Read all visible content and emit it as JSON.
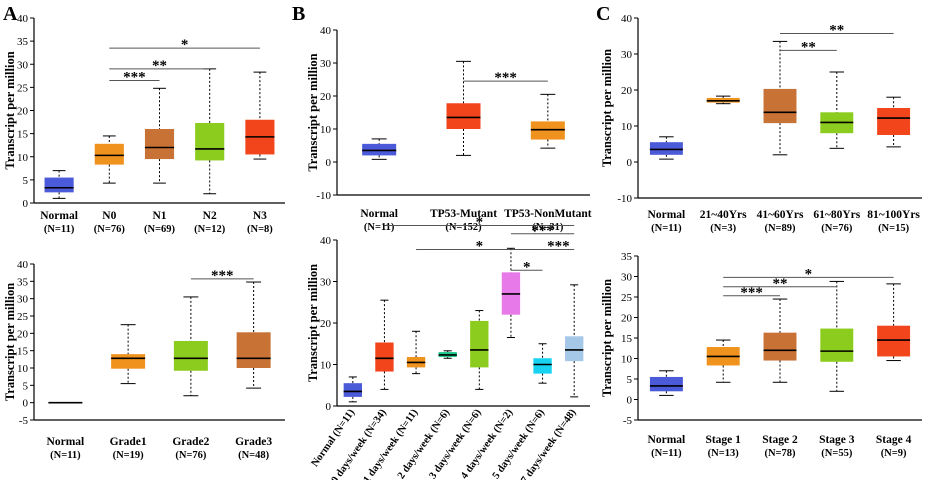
{
  "panel_letters": [
    "A",
    "B",
    "C"
  ],
  "chart_data": [
    {
      "id": "A1",
      "panel": "A",
      "type": "box",
      "ylabel": "Transcript per million",
      "ylim": [
        0,
        40
      ],
      "yticks": [
        0,
        5,
        10,
        15,
        20,
        25,
        30,
        35,
        40
      ],
      "categories": [
        "Normal",
        "N0",
        "N1",
        "N2",
        "N3"
      ],
      "sublabels": [
        "(N=11)",
        "(N=76)",
        "(N=69)",
        "(N=12)",
        "(N=8)"
      ],
      "boxes": [
        {
          "min": 1,
          "q1": 2.3,
          "median": 3.3,
          "q3": 5.5,
          "max": 7,
          "color": "#4a5ad8"
        },
        {
          "min": 4.3,
          "q1": 8.3,
          "median": 10.3,
          "q3": 12.8,
          "max": 14.5,
          "color": "#f0921e"
        },
        {
          "min": 4.3,
          "q1": 9.5,
          "median": 12,
          "q3": 16,
          "max": 24.8,
          "color": "#c87335"
        },
        {
          "min": 2,
          "q1": 9.2,
          "median": 11.7,
          "q3": 17.3,
          "max": 29,
          "color": "#8ccc1e"
        },
        {
          "min": 9.5,
          "q1": 10.5,
          "median": 14.3,
          "q3": 18,
          "max": 28.3,
          "color": "#f2451c"
        }
      ],
      "brackets": [
        {
          "from": 1,
          "to": 4,
          "y": 33.5,
          "label": "*"
        },
        {
          "from": 1,
          "to": 3,
          "y": 29,
          "label": "**"
        },
        {
          "from": 1,
          "to": 2,
          "y": 26.5,
          "label": "***"
        }
      ]
    },
    {
      "id": "A2",
      "panel": "A",
      "type": "box",
      "ylabel": "Transcript per million",
      "ylim": [
        -5,
        40
      ],
      "yticks": [
        -5,
        0,
        5,
        10,
        15,
        20,
        25,
        30,
        35,
        40
      ],
      "categories": [
        "Normal",
        "Grade1",
        "Grade2",
        "Grade3"
      ],
      "sublabels": [
        "(N=11)",
        "(N=19)",
        "(N=76)",
        "(N=48)"
      ],
      "boxes": [
        {
          "min": 0,
          "q1": 0,
          "median": 0,
          "q3": 0,
          "max": 0,
          "color": "#4a5ad8"
        },
        {
          "min": 5.5,
          "q1": 9.8,
          "median": 12.8,
          "q3": 14,
          "max": 22.5,
          "color": "#f0921e"
        },
        {
          "min": 2,
          "q1": 9.2,
          "median": 12.8,
          "q3": 17.8,
          "max": 30.5,
          "color": "#8ccc1e"
        },
        {
          "min": 4.2,
          "q1": 10,
          "median": 12.8,
          "q3": 20.3,
          "max": 34.8,
          "color": "#c87335"
        }
      ],
      "brackets": [
        {
          "from": 2,
          "to": 3,
          "y": 35.7,
          "label": "***"
        }
      ]
    },
    {
      "id": "B1",
      "panel": "B",
      "type": "box",
      "ylabel": "Transcript per million",
      "ylim": [
        -10,
        40
      ],
      "yticks": [
        -10,
        0,
        10,
        20,
        30,
        40
      ],
      "categories": [
        "Normal",
        "TP53-Mutant",
        "TP53-NonMutant"
      ],
      "sublabels": [
        "(N=11)",
        "(N=152)",
        "(N=31)"
      ],
      "boxes": [
        {
          "min": 0.8,
          "q1": 2,
          "median": 3.5,
          "q3": 5.5,
          "max": 7,
          "color": "#4a5ad8"
        },
        {
          "min": 2,
          "q1": 10,
          "median": 13.5,
          "q3": 17.8,
          "max": 30.5,
          "color": "#f2451c"
        },
        {
          "min": 4.2,
          "q1": 6.8,
          "median": 9.8,
          "q3": 12.3,
          "max": 20.5,
          "color": "#f0921e"
        }
      ],
      "brackets": [
        {
          "from": 1,
          "to": 2,
          "y": 24.5,
          "label": "***"
        }
      ]
    },
    {
      "id": "B2",
      "panel": "B",
      "type": "box",
      "ylabel": "Transcript per million",
      "ylim": [
        0,
        40
      ],
      "yticks": [
        0,
        10,
        20,
        30,
        40
      ],
      "rotate_labels": true,
      "categories": [
        "Normal",
        "0 days/week",
        "1 days/week",
        "2 days/week",
        "3 days/week",
        "4 days/week",
        "5 days/week",
        "7 days/week"
      ],
      "sublabels": [
        "(N=11)",
        "(N=34)",
        "(N=11)",
        "(N=6)",
        "(N=6)",
        "(N=2)",
        "(N=6)",
        "(N=48)"
      ],
      "boxes": [
        {
          "min": 1,
          "q1": 2.2,
          "median": 3.5,
          "q3": 5.5,
          "max": 7,
          "color": "#4a5ad8"
        },
        {
          "min": 4,
          "q1": 8.3,
          "median": 11.5,
          "q3": 15.3,
          "max": 25.5,
          "color": "#f2451c"
        },
        {
          "min": 7.8,
          "q1": 9.3,
          "median": 10.5,
          "q3": 11.8,
          "max": 18,
          "color": "#f0921e"
        },
        {
          "min": 11.5,
          "q1": 11.8,
          "median": 12.3,
          "q3": 13,
          "max": 13.3,
          "color": "#1ec98c"
        },
        {
          "min": 4,
          "q1": 9.3,
          "median": 13.5,
          "q3": 20.5,
          "max": 23,
          "color": "#8ccc1e"
        },
        {
          "min": 16.5,
          "q1": 22,
          "median": 27,
          "q3": 32.2,
          "max": 38,
          "color": "#e77ae8"
        },
        {
          "min": 5.5,
          "q1": 7.8,
          "median": 10,
          "q3": 11.5,
          "max": 15,
          "color": "#17d2f0"
        },
        {
          "min": 2.2,
          "q1": 10.8,
          "median": 13.5,
          "q3": 16.8,
          "max": 29.2,
          "color": "#a6c8e8"
        }
      ],
      "brackets": [
        {
          "from": 1,
          "to": 7,
          "y": 43.5,
          "label": "*"
        },
        {
          "from": 5,
          "to": 7,
          "y": 41.5,
          "label": "***"
        },
        {
          "from": 2,
          "to": 6,
          "y": 37.7,
          "label": "*"
        },
        {
          "from": 6,
          "to": 7,
          "y": 37.7,
          "label": "***"
        },
        {
          "from": 5,
          "to": 6,
          "y": 32.7,
          "label": "*"
        }
      ]
    },
    {
      "id": "C1",
      "panel": "C",
      "type": "box",
      "ylabel": "Transcript per million",
      "ylim": [
        -10,
        40
      ],
      "yticks": [
        -10,
        0,
        10,
        20,
        30,
        40
      ],
      "categories": [
        "Normal",
        "21~40Yrs",
        "41~60Yrs",
        "61~80Yrs",
        "81~100Yrs"
      ],
      "sublabels": [
        "(N=11)",
        "(N=3)",
        "(N=89)",
        "(N=76)",
        "(N=15)"
      ],
      "boxes": [
        {
          "min": 0.8,
          "q1": 2,
          "median": 3.5,
          "q3": 5.5,
          "max": 7,
          "color": "#4a5ad8"
        },
        {
          "min": 16.2,
          "q1": 16.5,
          "median": 17,
          "q3": 17.8,
          "max": 18.3,
          "color": "#f0921e"
        },
        {
          "min": 2,
          "q1": 10.8,
          "median": 13.8,
          "q3": 20.3,
          "max": 33.5,
          "color": "#c87335"
        },
        {
          "min": 3.8,
          "q1": 8,
          "median": 11,
          "q3": 13.8,
          "max": 25,
          "color": "#8ccc1e"
        },
        {
          "min": 4.2,
          "q1": 7.5,
          "median": 12.2,
          "q3": 15,
          "max": 18,
          "color": "#f2451c"
        }
      ],
      "brackets": [
        {
          "from": 2,
          "to": 4,
          "y": 35.7,
          "label": "**"
        },
        {
          "from": 2,
          "to": 3,
          "y": 31,
          "label": "**"
        }
      ]
    },
    {
      "id": "C2",
      "panel": "C",
      "type": "box",
      "ylabel": "Transcript per million",
      "ylim": [
        -5,
        35
      ],
      "yticks": [
        -5,
        0,
        5,
        10,
        15,
        20,
        25,
        30,
        35
      ],
      "categories": [
        "Normal",
        "Stage 1",
        "Stage 2",
        "Stage 3",
        "Stage 4"
      ],
      "sublabels": [
        "(N=11)",
        "(N=13)",
        "(N=78)",
        "(N=55)",
        "(N=9)"
      ],
      "boxes": [
        {
          "min": 1,
          "q1": 2,
          "median": 3.3,
          "q3": 5.5,
          "max": 7,
          "color": "#4a5ad8"
        },
        {
          "min": 4.2,
          "q1": 8.3,
          "median": 10.5,
          "q3": 12.8,
          "max": 14.5,
          "color": "#f0921e"
        },
        {
          "min": 4.2,
          "q1": 9.5,
          "median": 12,
          "q3": 16.3,
          "max": 24.5,
          "color": "#c87335"
        },
        {
          "min": 2,
          "q1": 9.2,
          "median": 11.8,
          "q3": 17.3,
          "max": 28.8,
          "color": "#8ccc1e"
        },
        {
          "min": 9.5,
          "q1": 10.5,
          "median": 14.5,
          "q3": 18,
          "max": 28.2,
          "color": "#f2451c"
        }
      ],
      "brackets": [
        {
          "from": 1,
          "to": 4,
          "y": 29.8,
          "label": "*"
        },
        {
          "from": 1,
          "to": 3,
          "y": 27.5,
          "label": "**"
        },
        {
          "from": 1,
          "to": 2,
          "y": 25.3,
          "label": "***"
        }
      ]
    }
  ]
}
